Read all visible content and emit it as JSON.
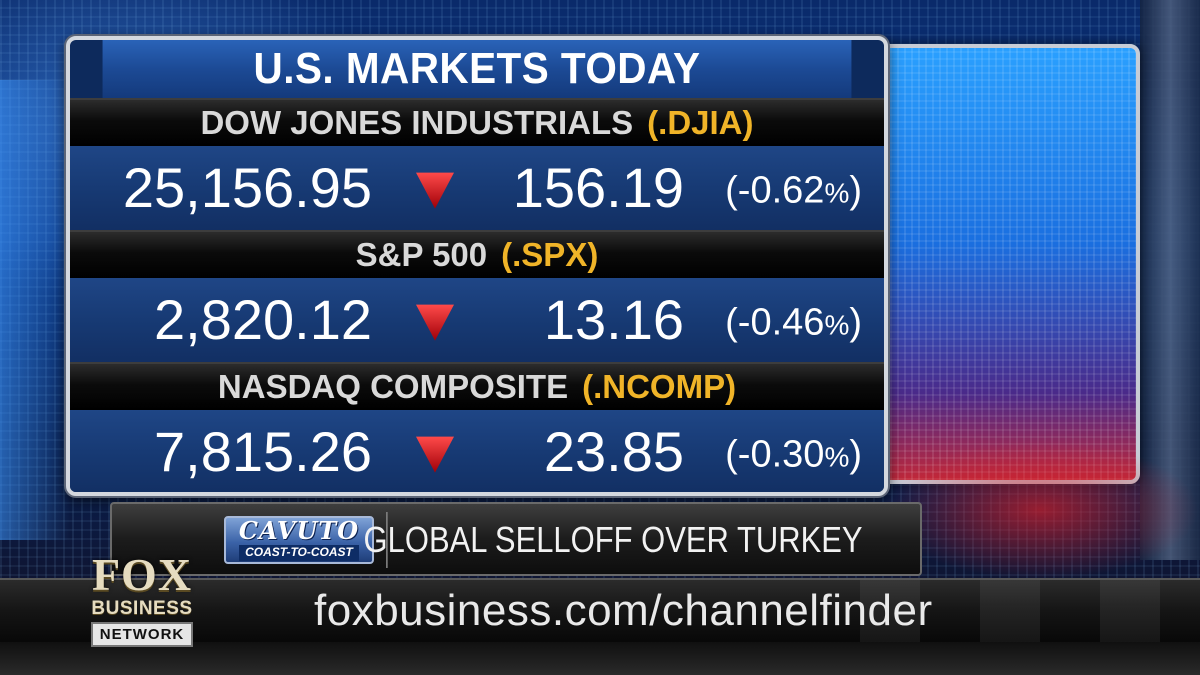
{
  "board": {
    "title": "U.S. MARKETS TODAY",
    "indices": [
      {
        "name": "DOW JONES INDUSTRIALS",
        "ticker": "(.DJIA)",
        "value": "25,156.95",
        "direction": "down",
        "change": "156.19",
        "pct_open": "(-0.62",
        "pct_sign": "%",
        "pct_close": ")"
      },
      {
        "name": "S&P 500",
        "ticker": "(.SPX)",
        "value": "2,820.12",
        "direction": "down",
        "change": "13.16",
        "pct_open": "(-0.46",
        "pct_sign": "%",
        "pct_close": ")"
      },
      {
        "name": "NASDAQ COMPOSITE",
        "ticker": "(.NCOMP)",
        "value": "7,815.26",
        "direction": "down",
        "change": "23.85",
        "pct_open": "(-0.30",
        "pct_sign": "%",
        "pct_close": ")"
      }
    ]
  },
  "lower_third": {
    "show_name": "CAVUTO",
    "show_subtitle": "COAST-TO-COAST",
    "headline": "GLOBAL SELLOFF OVER TURKEY"
  },
  "ticker": {
    "url": "foxbusiness.com/channelfinder"
  },
  "network": {
    "line1": "FOX",
    "line2": "BUSINESS",
    "line3": "NETWORK"
  },
  "colors": {
    "ticker_symbol": "#f0b428",
    "down_arrow": "#e0141e",
    "board_blue": "#1f4686",
    "title_blue": "#2a63b8"
  },
  "icons": {
    "down_arrow": "down-triangle-icon"
  }
}
